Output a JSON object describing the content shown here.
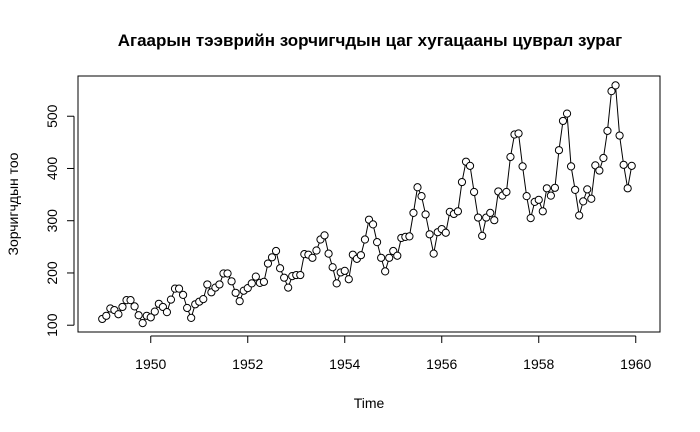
{
  "chart_data": {
    "type": "line",
    "title": "Агаарын тээврийн зорчигчдын цаг хугацааны цуврал зураг",
    "xlabel": "Time",
    "ylabel": "Зорчигчдын тоо",
    "xlim": [
      1948.5,
      1960.5
    ],
    "ylim": [
      87,
      577
    ],
    "xticks": [
      1950,
      1952,
      1954,
      1956,
      1958,
      1960
    ],
    "yticks": [
      100,
      200,
      300,
      400,
      500
    ],
    "grid": false,
    "markers": "open-circle",
    "series": [
      {
        "start": 1949,
        "frequency": 12,
        "values": [
          112,
          118,
          132,
          129,
          121,
          135,
          148,
          148,
          136,
          119,
          104,
          118,
          115,
          126,
          141,
          135,
          125,
          149,
          170,
          170,
          158,
          133,
          114,
          140,
          145,
          150,
          178,
          163,
          172,
          178,
          199,
          199,
          184,
          162,
          146,
          166,
          171,
          180,
          193,
          181,
          183,
          218,
          230,
          242,
          209,
          191,
          172,
          194,
          196,
          196,
          236,
          235,
          229,
          243,
          264,
          272,
          237,
          211,
          180,
          201,
          204,
          188,
          235,
          227,
          234,
          264,
          302,
          293,
          259,
          229,
          203,
          229,
          242,
          233,
          267,
          269,
          270,
          315,
          364,
          347,
          312,
          274,
          237,
          278,
          284,
          277,
          317,
          313,
          318,
          374,
          413,
          405,
          355,
          306,
          271,
          306,
          315,
          301,
          356,
          348,
          355,
          422,
          465,
          467,
          404,
          347,
          305,
          336,
          340,
          318,
          362,
          348,
          363,
          435,
          491,
          505,
          404,
          359,
          310,
          337,
          360,
          342,
          406,
          396,
          420,
          472,
          548,
          559,
          463,
          407,
          362,
          405
        ]
      }
    ]
  }
}
